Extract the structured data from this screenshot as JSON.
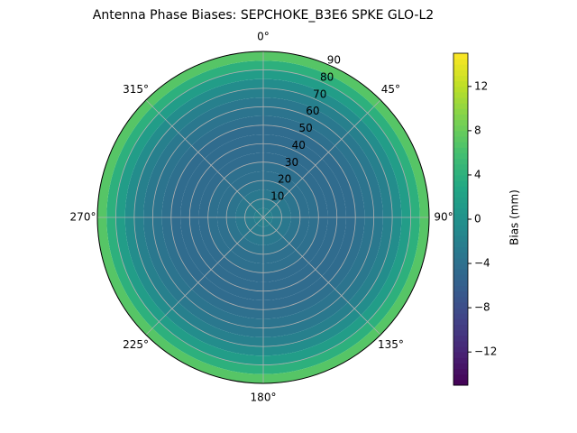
{
  "chart_data": {
    "type": "polar_heatmap",
    "title": "Antenna Phase Biases: SEPCHOKE_B3E6   SPKE GLO-L2",
    "zenith_bins": [
      0,
      5,
      10,
      15,
      20,
      25,
      30,
      35,
      40,
      45,
      50,
      55,
      60,
      65,
      70,
      75,
      80,
      85,
      90
    ],
    "values": [
      -2,
      -2.5,
      -3,
      -3.5,
      -4,
      -4,
      -4.5,
      -4.5,
      -4.5,
      -4.5,
      -4,
      -3.5,
      -3,
      -2,
      -0.5,
      1.5,
      4,
      7
    ],
    "rlim": [
      0,
      90
    ],
    "rticks": [
      10,
      20,
      30,
      40,
      50,
      60,
      70,
      80,
      90
    ],
    "angle_ticks": [
      {
        "value": 0,
        "label": "0°"
      },
      {
        "value": 45,
        "label": "45°"
      },
      {
        "value": 90,
        "label": "90°"
      },
      {
        "value": 135,
        "label": "135°"
      },
      {
        "value": 180,
        "label": "180°"
      },
      {
        "value": 225,
        "label": "225°"
      },
      {
        "value": 270,
        "label": "270°"
      },
      {
        "value": 315,
        "label": "315°"
      }
    ],
    "colormap": "viridis",
    "clim": [
      -15,
      15
    ],
    "cticks": [
      {
        "value": -12,
        "label": "−12"
      },
      {
        "value": -8,
        "label": "−8"
      },
      {
        "value": -4,
        "label": "−4"
      },
      {
        "value": 0,
        "label": "0"
      },
      {
        "value": 4,
        "label": "4"
      },
      {
        "value": 8,
        "label": "8"
      },
      {
        "value": 12,
        "label": "12"
      }
    ],
    "colorbar_label": "Bias (mm)",
    "grid": true
  }
}
